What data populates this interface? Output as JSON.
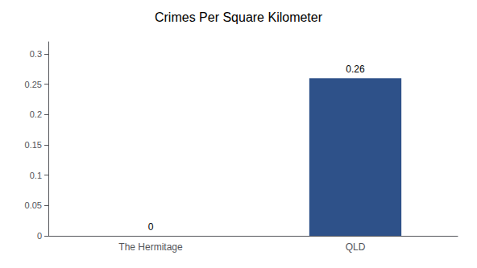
{
  "chart_data": {
    "type": "bar",
    "title": "Crimes Per Square Kilometer",
    "categories": [
      "The Hermitage",
      "QLD"
    ],
    "values": [
      0,
      0.26
    ],
    "color": "#2e5189",
    "ylim": [
      0,
      0.32
    ],
    "yticks": [
      0,
      0.05,
      0.1,
      0.15,
      0.2,
      0.25,
      0.3
    ],
    "grid": false,
    "data_labels": true
  }
}
